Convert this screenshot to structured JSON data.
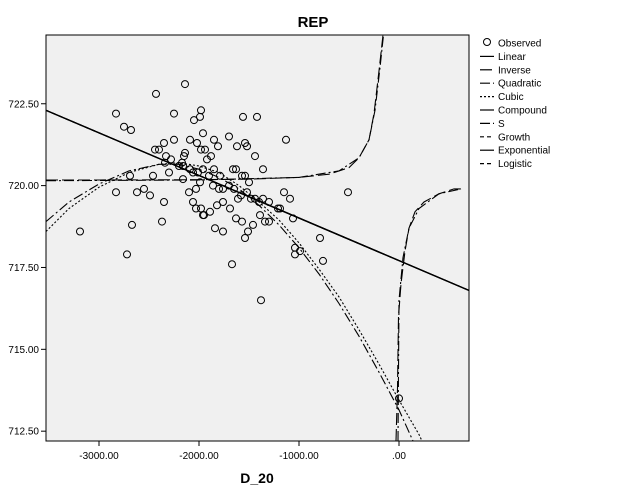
{
  "chart_data": {
    "type": "scatter",
    "title": "REP",
    "xlabel": "D_20",
    "ylabel": "",
    "xlim": [
      -3530,
      700
    ],
    "ylim": [
      712.2,
      724.6
    ],
    "x_ticks": [
      {
        "value": -3000,
        "label": "-3000.00"
      },
      {
        "value": -2000,
        "label": "-2000.00"
      },
      {
        "value": -1000,
        "label": "-1000.00"
      },
      {
        "value": 0,
        "label": ".00"
      }
    ],
    "y_ticks": [
      {
        "value": 712.5,
        "label": "712.50"
      },
      {
        "value": 715.0,
        "label": "715.00"
      },
      {
        "value": 717.5,
        "label": "717.50"
      },
      {
        "value": 720.0,
        "label": "720.00"
      },
      {
        "value": 722.5,
        "label": "722.50"
      }
    ],
    "grid": false,
    "legend_position": "right",
    "legend": [
      "Observed",
      "Linear",
      "Inverse",
      "Quadratic",
      "Cubic",
      "Compound",
      "S",
      "Growth",
      "Exponential",
      "Logistic"
    ],
    "observed_points": [
      [
        -2830,
        722.2
      ],
      [
        -2750,
        721.8
      ],
      [
        -2680,
        721.7
      ],
      [
        -2430,
        722.8
      ],
      [
        -2140,
        723.1
      ],
      [
        -1980,
        722.3
      ],
      [
        -1990,
        722.1
      ],
      [
        -2250,
        722.2
      ],
      [
        -2250,
        721.4
      ],
      [
        -2350,
        721.3
      ],
      [
        -2440,
        721.1
      ],
      [
        -2400,
        721.1
      ],
      [
        -2330,
        720.9
      ],
      [
        -2280,
        720.8
      ],
      [
        -2200,
        720.6
      ],
      [
        -2160,
        720.6
      ],
      [
        -2140,
        721.0
      ],
      [
        -2090,
        721.4
      ],
      [
        -2020,
        721.3
      ],
      [
        -1980,
        721.1
      ],
      [
        -1940,
        721.1
      ],
      [
        -1850,
        721.4
      ],
      [
        -1810,
        721.2
      ],
      [
        -1700,
        721.5
      ],
      [
        -1560,
        722.1
      ],
      [
        -1420,
        722.1
      ],
      [
        -1130,
        721.4
      ],
      [
        -1540,
        721.3
      ],
      [
        -1520,
        721.2
      ],
      [
        -1620,
        721.2
      ],
      [
        -2050,
        722.0
      ],
      [
        -1960,
        721.6
      ],
      [
        -2150,
        720.9
      ],
      [
        -2170,
        720.7
      ],
      [
        -2090,
        720.5
      ],
      [
        -2060,
        720.4
      ],
      [
        -2010,
        720.4
      ],
      [
        -1960,
        720.5
      ],
      [
        -1920,
        720.8
      ],
      [
        -1880,
        720.9
      ],
      [
        -1850,
        720.5
      ],
      [
        -1790,
        720.3
      ],
      [
        -1660,
        720.5
      ],
      [
        -1630,
        720.5
      ],
      [
        -1570,
        720.3
      ],
      [
        -1540,
        720.3
      ],
      [
        -1500,
        720.1
      ],
      [
        -1440,
        720.9
      ],
      [
        -1360,
        720.5
      ],
      [
        -2830,
        719.8
      ],
      [
        -2690,
        720.3
      ],
      [
        -2550,
        719.9
      ],
      [
        -2460,
        720.3
      ],
      [
        -2340,
        720.7
      ],
      [
        -2300,
        720.4
      ],
      [
        -2160,
        720.2
      ],
      [
        -2100,
        719.8
      ],
      [
        -2030,
        719.9
      ],
      [
        -1990,
        720.1
      ],
      [
        -1900,
        720.3
      ],
      [
        -1860,
        720.0
      ],
      [
        -1800,
        719.9
      ],
      [
        -1760,
        719.9
      ],
      [
        -1700,
        720.0
      ],
      [
        -1650,
        719.9
      ],
      [
        -1610,
        719.6
      ],
      [
        -1580,
        719.7
      ],
      [
        -1520,
        719.8
      ],
      [
        -1480,
        719.6
      ],
      [
        -1440,
        719.6
      ],
      [
        -1400,
        719.5
      ],
      [
        -1360,
        719.6
      ],
      [
        -1300,
        719.5
      ],
      [
        -1190,
        719.3
      ],
      [
        -1150,
        719.8
      ],
      [
        -1090,
        719.6
      ],
      [
        -1060,
        719.0
      ],
      [
        -510,
        719.8
      ],
      [
        -2620,
        719.8
      ],
      [
        -2490,
        719.7
      ],
      [
        -2350,
        719.5
      ],
      [
        -2060,
        719.5
      ],
      [
        -2030,
        719.3
      ],
      [
        -1980,
        719.3
      ],
      [
        -1950,
        719.1
      ],
      [
        -1890,
        719.2
      ],
      [
        -1820,
        719.4
      ],
      [
        -1760,
        719.5
      ],
      [
        -1690,
        719.3
      ],
      [
        -1630,
        719.0
      ],
      [
        -1570,
        718.9
      ],
      [
        -1510,
        718.6
      ],
      [
        -1460,
        718.8
      ],
      [
        -1390,
        719.1
      ],
      [
        -1340,
        718.9
      ],
      [
        -1300,
        718.9
      ],
      [
        -1210,
        719.3
      ],
      [
        -1960,
        719.1
      ],
      [
        -3190,
        718.6
      ],
      [
        -2670,
        718.8
      ],
      [
        -2370,
        718.9
      ],
      [
        -1840,
        718.7
      ],
      [
        -1760,
        718.6
      ],
      [
        -1540,
        718.4
      ],
      [
        -1040,
        718.1
      ],
      [
        -1040,
        717.9
      ],
      [
        -990,
        718.0
      ],
      [
        -790,
        718.4
      ],
      [
        -760,
        717.7
      ],
      [
        -2720,
        717.9
      ],
      [
        -1670,
        717.6
      ],
      [
        -1380,
        716.5
      ],
      [
        0,
        713.5
      ]
    ],
    "fitted_curves": [
      {
        "model": "Linear",
        "style": "solid",
        "endpoints": [
          [
            -3530,
            722.3
          ],
          [
            700,
            716.8
          ]
        ]
      },
      {
        "model": "Compound",
        "style": "solid",
        "endpoints": [
          [
            -3530,
            722.3
          ],
          [
            700,
            716.8
          ]
        ]
      },
      {
        "model": "Growth",
        "style": "dashed",
        "endpoints": [
          [
            -3530,
            722.3
          ],
          [
            700,
            716.8
          ]
        ]
      },
      {
        "model": "Exponential",
        "style": "solid",
        "endpoints": [
          [
            -3530,
            722.3
          ],
          [
            700,
            716.8
          ]
        ]
      },
      {
        "model": "Logistic",
        "style": "dashed",
        "endpoints": [
          [
            -3530,
            722.3
          ],
          [
            700,
            716.8
          ]
        ]
      },
      {
        "model": "Inverse",
        "style": "long-dash",
        "points": [
          [
            -3530,
            720.17
          ],
          [
            -3000,
            720.17
          ],
          [
            -2000,
            720.18
          ],
          [
            -1500,
            720.2
          ],
          [
            -1000,
            720.25
          ],
          [
            -700,
            720.35
          ],
          [
            -500,
            720.55
          ],
          [
            -400,
            720.85
          ],
          [
            -300,
            721.4
          ],
          [
            -250,
            722.2
          ],
          [
            -200,
            723.5
          ],
          [
            -160,
            724.6
          ]
        ],
        "points_right": [
          [
            -30,
            712.2
          ],
          [
            -15,
            713.8
          ],
          [
            -5,
            716.0
          ],
          [
            20,
            717.0
          ],
          [
            60,
            718.0
          ],
          [
            100,
            718.7
          ],
          [
            160,
            719.2
          ],
          [
            250,
            719.5
          ],
          [
            400,
            719.75
          ],
          [
            550,
            719.9
          ],
          [
            620,
            719.9
          ]
        ]
      },
      {
        "model": "Quadratic",
        "style": "dash-dot",
        "points": [
          [
            -3530,
            718.9
          ],
          [
            -3300,
            719.5
          ],
          [
            -3000,
            720.05
          ],
          [
            -2700,
            720.45
          ],
          [
            -2400,
            720.65
          ],
          [
            -2200,
            720.65
          ],
          [
            -2000,
            720.5
          ],
          [
            -1800,
            720.25
          ],
          [
            -1600,
            719.9
          ],
          [
            -1400,
            719.4
          ],
          [
            -1200,
            718.8
          ],
          [
            -1000,
            718.1
          ],
          [
            -800,
            717.3
          ],
          [
            -600,
            716.4
          ],
          [
            -400,
            715.4
          ],
          [
            -200,
            714.3
          ],
          [
            0,
            713.15
          ],
          [
            140,
            712.2
          ]
        ]
      },
      {
        "model": "Cubic",
        "style": "dotted",
        "points": [
          [
            -3530,
            718.6
          ],
          [
            -3300,
            719.3
          ],
          [
            -3000,
            719.95
          ],
          [
            -2700,
            720.4
          ],
          [
            -2400,
            720.65
          ],
          [
            -2200,
            720.7
          ],
          [
            -2000,
            720.6
          ],
          [
            -1800,
            720.4
          ],
          [
            -1600,
            720.0
          ],
          [
            -1400,
            719.5
          ],
          [
            -1200,
            718.95
          ],
          [
            -1000,
            718.25
          ],
          [
            -800,
            717.45
          ],
          [
            -600,
            716.6
          ],
          [
            -400,
            715.6
          ],
          [
            -200,
            714.55
          ],
          [
            0,
            713.45
          ],
          [
            200,
            712.4
          ],
          [
            230,
            712.2
          ]
        ]
      },
      {
        "model": "S",
        "style": "dash-dot",
        "points": [
          [
            -3530,
            720.15
          ],
          [
            -2000,
            720.17
          ],
          [
            -1000,
            720.25
          ],
          [
            -600,
            720.45
          ],
          [
            -400,
            720.85
          ],
          [
            -300,
            721.4
          ],
          [
            -240,
            722.3
          ],
          [
            -190,
            723.6
          ],
          [
            -155,
            724.6
          ]
        ],
        "points_right": [
          [
            -10,
            712.2
          ],
          [
            0,
            716.5
          ],
          [
            40,
            717.8
          ],
          [
            100,
            718.7
          ],
          [
            200,
            719.3
          ],
          [
            400,
            719.75
          ],
          [
            620,
            719.9
          ]
        ]
      }
    ]
  }
}
